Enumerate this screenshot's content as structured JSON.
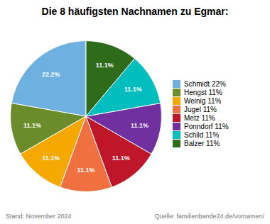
{
  "chart_data": {
    "type": "pie",
    "title": "Die 8 häufigsten Nachnamen zu Egmar:",
    "categories": [
      "Schmidt 22%",
      "Hengst 11%",
      "Weinig 11%",
      "Jugel 11%",
      "Metz 11%",
      "Ponndorf 11%",
      "Schild 11%",
      "Balzer 11%"
    ],
    "values": [
      22.2,
      11.1,
      11.1,
      11.1,
      11.1,
      11.1,
      11.1,
      11.1
    ],
    "value_labels": [
      "22.2%",
      "11.1%",
      "11.1%",
      "11.1%",
      "11.1%",
      "11.1%",
      "11.1%",
      "11.1%"
    ],
    "colors": [
      "#6EB0E0",
      "#6B8C2A",
      "#F5A800",
      "#F07040",
      "#C0162A",
      "#7030A0",
      "#00BEBE",
      "#2E6B1A"
    ],
    "data_labels": true,
    "legend": "right",
    "annotations": [
      "Stand: November 2024",
      "Quelle: familienbande24.de/vornamen/"
    ]
  }
}
